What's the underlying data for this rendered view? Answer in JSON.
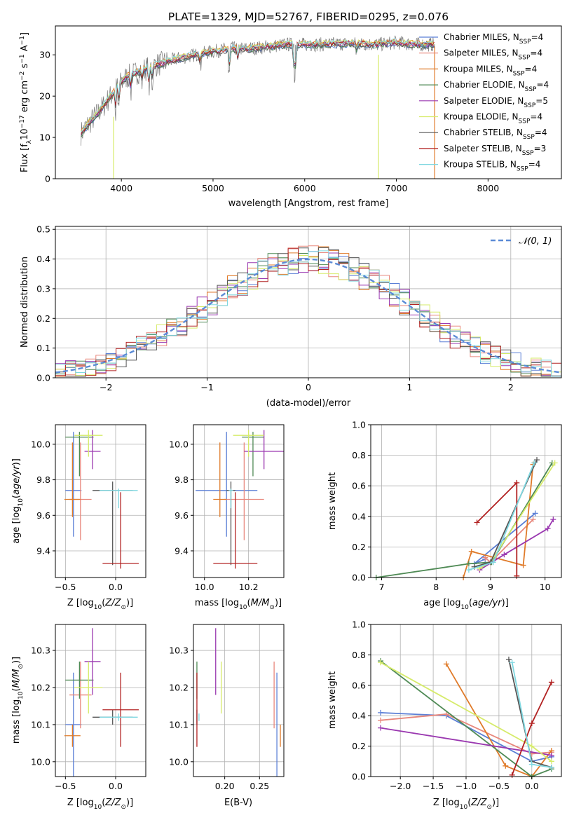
{
  "page_title": "PLATE=1329, MJD=52767, FIBERID=0295, z=0.076",
  "colors": {
    "Chabrier MILES": "#5b7fd6",
    "Salpeter MILES": "#e8877c",
    "Kroupa MILES": "#e07b2a",
    "Chabrier ELODIE": "#4f8a55",
    "Salpeter ELODIE": "#9a38b0",
    "Kroupa ELODIE": "#d6eb6a",
    "Chabrier STELIB": "#555555",
    "Salpeter STELIB": "#b22222",
    "Kroupa STELIB": "#7fd7e0",
    "gauss": "#5b8bd6"
  },
  "chart_data": [
    {
      "id": "spectrum",
      "type": "line",
      "xlabel": "wavelength [Angstrom, rest frame]",
      "ylabel": "Flux [fλ10⁻¹⁷ erg cm⁻² s⁻¹ A⁻¹]",
      "xlim": [
        3280,
        8800
      ],
      "ylim": [
        0,
        37
      ],
      "xticks": [
        4000,
        5000,
        6000,
        7000,
        8000
      ],
      "yticks": [
        0,
        10,
        20,
        30
      ],
      "grid": false,
      "legend_position": "right",
      "legend": [
        {
          "label": "Chabrier MILES, N",
          "sub": "SSP",
          "tail": "=4",
          "key": "Chabrier MILES"
        },
        {
          "label": "Salpeter MILES, N",
          "sub": "SSP",
          "tail": "=4",
          "key": "Salpeter MILES"
        },
        {
          "label": "Kroupa MILES, N",
          "sub": "SSP",
          "tail": "=4",
          "key": "Kroupa MILES"
        },
        {
          "label": "Chabrier ELODIE, N",
          "sub": "SSP",
          "tail": "=4",
          "key": "Chabrier ELODIE"
        },
        {
          "label": "Salpeter ELODIE, N",
          "sub": "SSP",
          "tail": "=5",
          "key": "Salpeter ELODIE"
        },
        {
          "label": "Kroupa ELODIE, N",
          "sub": "SSP",
          "tail": "=4",
          "key": "Kroupa ELODIE"
        },
        {
          "label": "Chabrier STELIB, N",
          "sub": "SSP",
          "tail": "=4",
          "key": "Chabrier STELIB"
        },
        {
          "label": "Salpeter STELIB, N",
          "sub": "SSP",
          "tail": "=3",
          "key": "Salpeter STELIB"
        },
        {
          "label": "Kroupa STELIB, N",
          "sub": "SSP",
          "tail": "=4",
          "key": "Kroupa STELIB"
        }
      ],
      "continuum": {
        "x": [
          3560,
          3650,
          3750,
          3850,
          3950,
          4050,
          4150,
          4300,
          4450,
          4600,
          4800,
          5000,
          5200,
          5400,
          5600,
          5800,
          6000,
          6200,
          6400,
          6600,
          6800,
          7000,
          7200,
          7400
        ],
        "y": [
          11,
          13.5,
          16,
          19,
          22,
          24.5,
          25.5,
          27,
          28,
          29,
          30,
          30.8,
          31.5,
          31.5,
          32,
          32.5,
          32.5,
          32.5,
          32.7,
          32.7,
          32.5,
          33,
          32.5,
          32.5
        ]
      }
    },
    {
      "id": "residuals",
      "type": "histogram",
      "xlabel": "(data-model)/error",
      "ylabel": "Normed distribution",
      "xlim": [
        -2.5,
        2.5
      ],
      "ylim": [
        0,
        0.51
      ],
      "xticks": [
        -2,
        -1,
        0,
        1,
        2
      ],
      "yticks": [
        0.0,
        0.1,
        0.2,
        0.3,
        0.4,
        0.5
      ],
      "grid": true,
      "legend_position": "top-right",
      "legend_label": "𝒩(0, 1)"
    },
    {
      "id": "age-vs-Z",
      "type": "errorbar",
      "xlabel": "Z [log₁₀(Z/Z⊙)]",
      "ylabel": "age  [log₁₀(age/yr)]",
      "xlim": [
        -0.6,
        0.3
      ],
      "ylim": [
        9.25,
        10.11
      ],
      "xticks": [
        -0.5,
        0.0
      ],
      "yticks": [
        9.4,
        9.6,
        9.8,
        10.0
      ],
      "grid": true
    },
    {
      "id": "age-vs-mass",
      "type": "errorbar",
      "xlabel": "mass [log₁₀(M/M⊙)]",
      "xlim": [
        9.95,
        10.36
      ],
      "ylim": [
        9.25,
        10.11
      ],
      "xticks": [
        10.0,
        10.2
      ],
      "yticks": [
        9.4,
        9.6,
        9.8,
        10.0
      ],
      "grid": true
    },
    {
      "id": "weight-vs-age",
      "type": "line",
      "xlabel": "age  [log₁₀(age/yr)]",
      "ylabel": "mass weight",
      "xlim": [
        6.8,
        10.3
      ],
      "ylim": [
        0,
        1.0
      ],
      "xticks": [
        7,
        8,
        9,
        10
      ],
      "yticks": [
        0.0,
        0.2,
        0.4,
        0.6,
        0.8,
        1.0
      ],
      "grid": true
    },
    {
      "id": "mass-vs-Z",
      "type": "errorbar",
      "xlabel": "Z [log₁₀(Z/Z⊙)]",
      "ylabel": "mass [log₁₀(M/M⊙)]",
      "xlim": [
        -0.6,
        0.3
      ],
      "ylim": [
        9.96,
        10.37
      ],
      "xticks": [
        -0.5,
        0.0
      ],
      "yticks": [
        10.0,
        10.1,
        10.2,
        10.3
      ],
      "grid": true
    },
    {
      "id": "mass-vs-EBV",
      "type": "errorbar",
      "xlabel": "E(B-V)",
      "xlim": [
        0.155,
        0.285
      ],
      "ylim": [
        9.96,
        10.37
      ],
      "xticks": [
        0.2,
        0.25
      ],
      "yticks": [
        10.0,
        10.1,
        10.2,
        10.3
      ],
      "grid": true
    },
    {
      "id": "weight-vs-Z",
      "type": "line",
      "xlabel": "Z [log₁₀(Z/Z⊙)]",
      "ylabel": "mass weight",
      "xlim": [
        -2.45,
        0.45
      ],
      "ylim": [
        0,
        1.0
      ],
      "xticks": [
        -2.0,
        -1.5,
        -1.0,
        -0.5,
        0.0
      ],
      "yticks": [
        0.0,
        0.2,
        0.4,
        0.6,
        0.8,
        1.0
      ],
      "grid": true
    }
  ],
  "fits": [
    {
      "key": "Chabrier MILES",
      "Z": -0.42,
      "Zerr": 0.08,
      "age": 9.74,
      "ageLo": 0.26,
      "ageHi": 0.33,
      "mass": 10.1,
      "massErr": 0.14,
      "ebv": 0.275,
      "ages": [
        8.9,
        8.7,
        9.82
      ],
      "agew": [
        0.12,
        0.09,
        0.42
      ],
      "Zs": [
        -2.3,
        -1.3,
        0.0,
        0.3
      ],
      "Zw": [
        0.42,
        0.4,
        0.1,
        0.13
      ]
    },
    {
      "key": "Salpeter MILES",
      "Z": -0.35,
      "Zerr": 0.11,
      "age": 9.69,
      "ageLo": 0.23,
      "ageHi": 0.32,
      "mass": 10.18,
      "massErr": 0.09,
      "ebv": 0.271,
      "ages": [
        8.9,
        9.0,
        9.78
      ],
      "agew": [
        0.13,
        0.1,
        0.38
      ],
      "Zs": [
        -2.3,
        -1.3,
        0.0,
        0.3
      ],
      "Zw": [
        0.37,
        0.41,
        0.15,
        0.16
      ]
    },
    {
      "key": "Kroupa MILES",
      "Z": -0.43,
      "Zerr": 0.08,
      "age": 9.69,
      "ageLo": 0.1,
      "ageHi": 0.32,
      "mass": 10.07,
      "massErr": 0.03,
      "ebv": 0.28,
      "ages": [
        8.5,
        8.65,
        9.6,
        9.78
      ],
      "agew": [
        0.0,
        0.17,
        0.08,
        0.74
      ],
      "Zs": [
        -1.3,
        -0.4,
        0.0,
        0.3
      ],
      "Zw": [
        0.74,
        0.07,
        0.0,
        0.17
      ]
    },
    {
      "key": "Chabrier ELODIE",
      "Z": -0.36,
      "Zerr": 0.14,
      "age": 10.04,
      "ageLo": 0.22,
      "ageHi": 0.03,
      "mass": 10.22,
      "massErr": 0.05,
      "ebv": 0.16,
      "ages": [
        6.9,
        8.6,
        9.02,
        10.13
      ],
      "agew": [
        0.0,
        0.09,
        0.1,
        0.75
      ],
      "Zs": [
        -2.3,
        0.0,
        0.3
      ],
      "Zw": [
        0.76,
        0.0,
        0.05
      ]
    },
    {
      "key": "Salpeter ELODIE",
      "Z": -0.23,
      "Zerr": 0.08,
      "age": 9.96,
      "ageLo": 0.1,
      "ageHi": 0.12,
      "mass": 10.27,
      "massErr": 0.09,
      "ebv": 0.187,
      "ages": [
        8.8,
        9.25,
        10.05,
        10.15
      ],
      "agew": [
        0.05,
        0.15,
        0.32,
        0.38
      ],
      "Zs": [
        -2.3,
        0.3
      ],
      "Zw": [
        0.32,
        0.14
      ]
    },
    {
      "key": "Kroupa ELODIE",
      "Z": -0.27,
      "Zerr": 0.14,
      "age": 10.05,
      "ageLo": 0.12,
      "ageHi": 0.03,
      "mass": 10.2,
      "massErr": 0.07,
      "ebv": 0.195,
      "ages": [
        8.8,
        9.0,
        10.18
      ],
      "agew": [
        0.06,
        0.1,
        0.75
      ],
      "Zs": [
        -2.3,
        0.0,
        0.3
      ],
      "Zw": [
        0.75,
        0.2,
        0.1
      ]
    },
    {
      "key": "Chabrier STELIB",
      "Z": -0.03,
      "Zerr": 0.2,
      "age": 9.74,
      "ageLo": 0.42,
      "ageHi": 0.05,
      "mass": 10.12,
      "massErr": 0.02,
      "ebv": 0.16,
      "ages": [
        8.7,
        9.0,
        9.85
      ],
      "agew": [
        0.07,
        0.1,
        0.77
      ],
      "Zs": [
        -0.35,
        0.0,
        0.3
      ],
      "Zw": [
        0.77,
        0.1,
        0.06
      ]
    },
    {
      "key": "Salpeter STELIB",
      "Z": 0.05,
      "Zerr": 0.18,
      "age": 9.33,
      "ageLo": 0.03,
      "ageHi": 0.4,
      "mass": 10.14,
      "massErr": 0.1,
      "ebv": 0.16,
      "ages": [
        8.75,
        9.48,
        9.48
      ],
      "agew": [
        0.36,
        0.62,
        0.01
      ],
      "Zs": [
        -0.3,
        0.0,
        0.3
      ],
      "Zw": [
        0.01,
        0.35,
        0.62
      ]
    },
    {
      "key": "Kroupa STELIB",
      "Z": 0.03,
      "Zerr": 0.19,
      "age": 9.74,
      "ageLo": 0.1,
      "ageHi": 0.01,
      "mass": 10.12,
      "massErr": 0.01,
      "ebv": 0.163,
      "ages": [
        8.6,
        9.05,
        9.8
      ],
      "agew": [
        0.05,
        0.1,
        0.75
      ],
      "Zs": [
        -0.3,
        0.0,
        0.3
      ],
      "Zw": [
        0.75,
        0.08,
        0.06
      ]
    }
  ]
}
